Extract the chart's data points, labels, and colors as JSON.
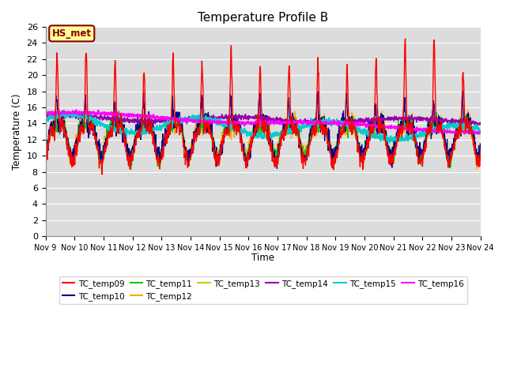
{
  "title": "Temperature Profile B",
  "xlabel": "Time",
  "ylabel": "Temperature (C)",
  "ylim": [
    0,
    26
  ],
  "yticks": [
    0,
    2,
    4,
    6,
    8,
    10,
    12,
    14,
    16,
    18,
    20,
    22,
    24,
    26
  ],
  "x_labels": [
    "Nov 9",
    "Nov 10",
    "Nov 11",
    "Nov 12",
    "Nov 13",
    "Nov 14",
    "Nov 15",
    "Nov 16",
    "Nov 17",
    "Nov 18",
    "Nov 19",
    "Nov 20",
    "Nov 21",
    "Nov 22",
    "Nov 23",
    "Nov 24"
  ],
  "annotation_text": "HS_met",
  "annotation_color": "#8B0000",
  "annotation_bg": "#FFFF99",
  "bg_color": "#DCDCDC",
  "series_colors": {
    "TC_temp09": "#FF0000",
    "TC_temp10": "#00008B",
    "TC_temp11": "#00CC00",
    "TC_temp12": "#FFA500",
    "TC_temp13": "#CCCC00",
    "TC_temp14": "#9900AA",
    "TC_temp15": "#00CCCC",
    "TC_temp16": "#FF00FF"
  },
  "num_points": 1500,
  "days": 15
}
